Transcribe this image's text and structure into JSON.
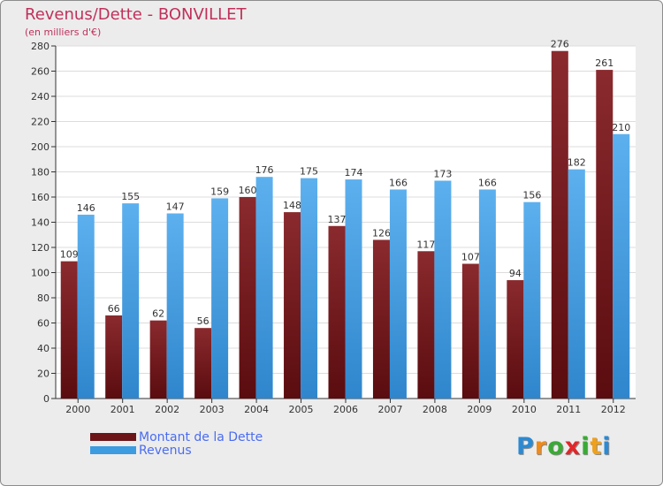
{
  "header": {
    "title": "Revenus/Dette - BONVILLET",
    "subtitle": "(en milliers d'€)"
  },
  "chart_data": {
    "type": "bar",
    "title": "Revenus/Dette - BONVILLET",
    "subtitle": "(en milliers d'€)",
    "xlabel": "",
    "ylabel": "",
    "categories": [
      "2000",
      "2001",
      "2002",
      "2003",
      "2004",
      "2005",
      "2006",
      "2007",
      "2008",
      "2009",
      "2010",
      "2011",
      "2012"
    ],
    "series": [
      {
        "name": "Montant de la Dette",
        "values": [
          109,
          66,
          62,
          56,
          160,
          148,
          137,
          126,
          117,
          107,
          94,
          276,
          261
        ],
        "color": "#7a1f22"
      },
      {
        "name": "Revenus",
        "values": [
          146,
          155,
          147,
          159,
          176,
          175,
          174,
          166,
          173,
          166,
          156,
          182,
          210
        ],
        "color": "#4ea4e6"
      }
    ],
    "ylim": [
      0,
      280
    ],
    "yticks": [
      0,
      20,
      40,
      60,
      80,
      100,
      120,
      140,
      160,
      180,
      200,
      220,
      240,
      260,
      280
    ],
    "grid": true,
    "legend_position": "bottom-left"
  },
  "legend": {
    "items": [
      {
        "label": "Montant de la Dette",
        "color": "#6b1518"
      },
      {
        "label": "Revenus",
        "color": "#3d9be0"
      }
    ]
  },
  "logo": {
    "letters": [
      "P",
      "r",
      "o",
      "x",
      "i",
      "t",
      "i"
    ],
    "colors": [
      "#2a8ad4",
      "#f08a1a",
      "#3aaa35",
      "#e2262a",
      "#3aaa35",
      "#f0a01a",
      "#2a8ad4"
    ]
  }
}
